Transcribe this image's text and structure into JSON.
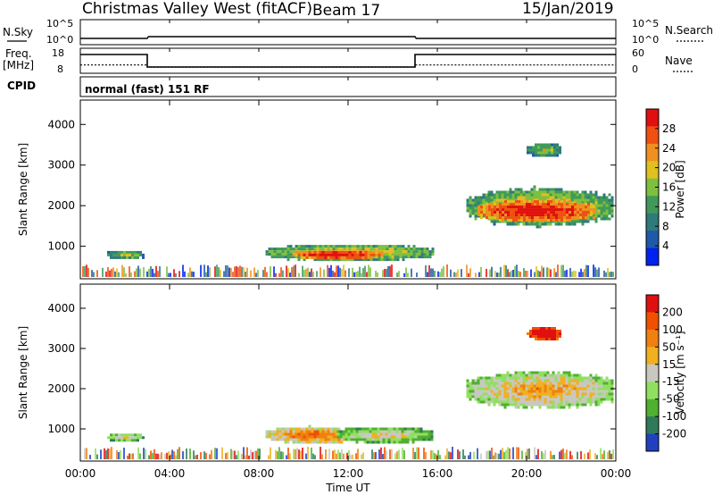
{
  "header": {
    "station": "Christmas Valley West (fitACF)",
    "beam": "Beam 17",
    "date": "15/Jan/2019"
  },
  "chart_data": [
    {
      "type": "line",
      "name": "nsky-nsearch",
      "ylabel_left": "N.Sky",
      "ylabel_right": "N.Search",
      "left_ticks": [
        "10^5",
        "10^0"
      ],
      "right_ticks": [
        "10^5",
        "10^0"
      ],
      "x_hours": [
        0,
        3.0,
        3.05,
        15.0,
        15.05,
        24
      ],
      "nsky_level": [
        0.25,
        0.25,
        0.32,
        0.32,
        0.25,
        0.25
      ]
    },
    {
      "type": "line",
      "name": "freq-nave",
      "ylabel_left_top": "Freq.",
      "ylabel_left_bottom": "[MHz]",
      "ylabel_right": "Nave",
      "left_ticks": [
        "18",
        "8"
      ],
      "right_ticks": [
        "60",
        "0"
      ],
      "ylim_freq": [
        8,
        18
      ],
      "freq": {
        "x": [
          0,
          3,
          3,
          15,
          15,
          24
        ],
        "y": [
          15.5,
          15.5,
          10.5,
          10.5,
          15.5,
          15.5
        ]
      },
      "nave": {
        "x": [
          0,
          3,
          3,
          15,
          15,
          24
        ],
        "y": [
          20,
          20,
          15,
          15,
          20,
          20
        ]
      }
    },
    {
      "type": "heatmap",
      "name": "power",
      "cpid_label": "CPID",
      "cpid_text": "normal (fast) 151 RF",
      "ylabel": "Slant Range [km]",
      "yticks": [
        "1000",
        "2000",
        "3000",
        "4000"
      ],
      "ylim": [
        200,
        4600
      ],
      "colorbar_label": "Power [dB]",
      "colorbar_ticks": [
        "28",
        "24",
        "20",
        "16",
        "12",
        "8",
        "4"
      ],
      "colors": [
        "#0022ee",
        "#1e5aa8",
        "#2f7a7a",
        "#3f9a5a",
        "#7fbf3f",
        "#dfc020",
        "#f09020",
        "#f05010",
        "#e01010"
      ],
      "regions": [
        {
          "h0": 1.2,
          "h1": 2.8,
          "r0": 700,
          "r1": 950,
          "level": 3
        },
        {
          "h0": 8.3,
          "h1": 15.8,
          "r0": 650,
          "r1": 1100,
          "level": 4
        },
        {
          "h0": 9.5,
          "h1": 13.5,
          "r0": 700,
          "r1": 950,
          "level": 7
        },
        {
          "h0": 17.3,
          "h1": 23.9,
          "r0": 1500,
          "r1": 2500,
          "level": 4
        },
        {
          "h0": 17.8,
          "h1": 23.0,
          "r0": 1600,
          "r1": 2200,
          "level": 7
        },
        {
          "h0": 20.0,
          "h1": 21.5,
          "r0": 3200,
          "r1": 3600,
          "level": 3
        }
      ]
    },
    {
      "type": "heatmap",
      "name": "velocity",
      "ylabel": "Slant Range [km]",
      "yticks": [
        "1000",
        "2000",
        "3000",
        "4000"
      ],
      "ylim": [
        200,
        4600
      ],
      "xticks": [
        "00:00",
        "04:00",
        "08:00",
        "12:00",
        "16:00",
        "20:00",
        "00:00"
      ],
      "xlabel": "Time UT",
      "colorbar_label": "Velocity [m s⁻¹]",
      "colorbar_ticks": [
        "200",
        "100",
        "50",
        "15",
        "-15",
        "-50",
        "-100",
        "-200"
      ],
      "colors": [
        "#2040c0",
        "#2f7a5a",
        "#50b030",
        "#90e060",
        "#c8c8c0",
        "#f0b020",
        "#f08010",
        "#f05000",
        "#e01010"
      ],
      "regions": [
        {
          "h0": 1.2,
          "h1": 2.8,
          "r0": 700,
          "r1": 950,
          "level": 3
        },
        {
          "h0": 8.3,
          "h1": 12.5,
          "r0": 650,
          "r1": 1100,
          "level": 5
        },
        {
          "h0": 11.5,
          "h1": 15.8,
          "r0": 650,
          "r1": 1100,
          "level": 3
        },
        {
          "h0": 17.3,
          "h1": 23.9,
          "r0": 1500,
          "r1": 2500,
          "level": 4
        },
        {
          "h0": 20.0,
          "h1": 21.5,
          "r0": 3200,
          "r1": 3600,
          "level": 8
        }
      ]
    }
  ]
}
